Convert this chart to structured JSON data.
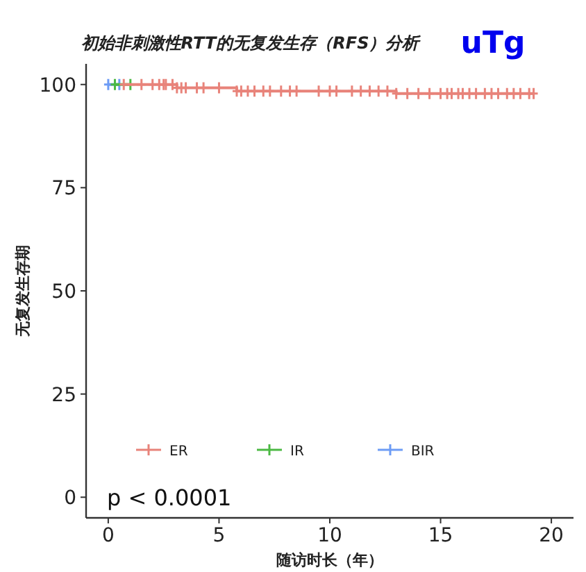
{
  "chart_data": {
    "type": "step",
    "title": "初始非刺激性RTT的无复发生存（RFS）分析",
    "subtitle": "uTg",
    "xlabel": "随访时长（年）",
    "ylabel": "无复发生存期",
    "xlim": [
      -1,
      21
    ],
    "ylim": [
      -5,
      105
    ],
    "xticks": [
      0,
      5,
      10,
      15,
      20
    ],
    "yticks": [
      0,
      25,
      50,
      75,
      100
    ],
    "series": [
      {
        "name": "ER",
        "color": "#e8837a",
        "x": [
          0.7,
          1.5,
          2.0,
          2.3,
          2.5,
          2.6,
          2.9,
          3.1,
          3.3,
          3.5,
          4.0,
          4.3,
          5.0,
          5.8,
          6.0,
          6.3,
          6.6,
          7.0,
          7.3,
          7.8,
          8.2,
          8.5,
          9.5,
          10.0,
          10.3,
          11.0,
          11.4,
          11.8,
          12.2,
          12.6,
          13.0,
          13.5,
          14.0,
          14.5,
          15.0,
          15.3,
          15.5,
          15.8,
          16.0,
          16.3,
          16.6,
          17.0,
          17.3,
          17.6,
          18.0,
          18.3,
          18.6,
          19.0,
          19.2
        ],
        "values": [
          100,
          100,
          100,
          100,
          100,
          100,
          100,
          99.2,
          99.2,
          99.2,
          99.2,
          99.2,
          99.2,
          98.4,
          98.4,
          98.4,
          98.4,
          98.4,
          98.4,
          98.4,
          98.4,
          98.4,
          98.4,
          98.4,
          98.4,
          98.4,
          98.4,
          98.4,
          98.4,
          98.4,
          97.8,
          97.8,
          97.8,
          97.8,
          97.8,
          97.8,
          97.8,
          97.8,
          97.8,
          97.8,
          97.8,
          97.8,
          97.8,
          97.8,
          97.8,
          97.8,
          97.8,
          97.8,
          97.8
        ]
      },
      {
        "name": "IR",
        "color": "#4cb944",
        "x": [
          0.3,
          1.0
        ],
        "values": [
          100,
          100
        ]
      },
      {
        "name": "BIR",
        "color": "#6d9cf5",
        "x": [
          0,
          0.5
        ],
        "values": [
          100,
          100
        ]
      }
    ],
    "marker": "cross",
    "legend": "bottom",
    "annotations": [
      "p < 0.0001"
    ]
  }
}
